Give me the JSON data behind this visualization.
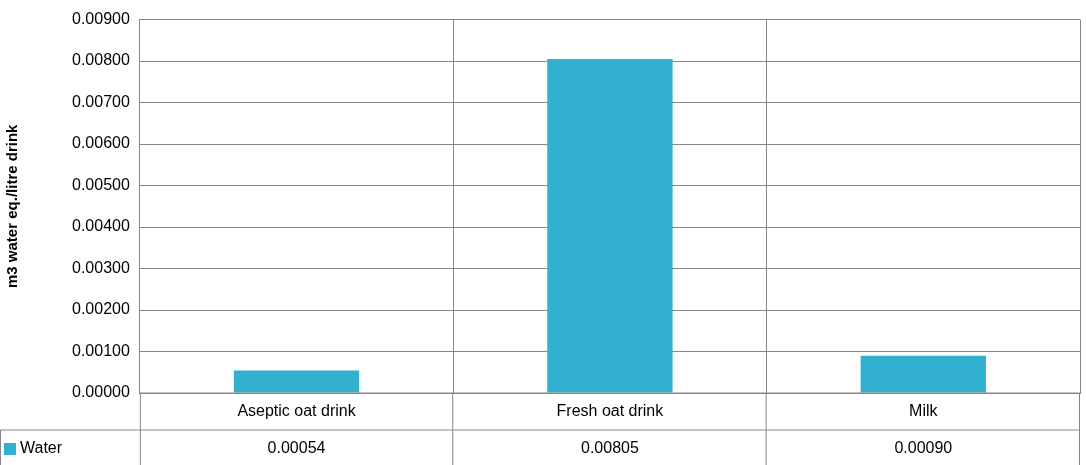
{
  "chart_data": {
    "type": "bar",
    "ylabel": "m3 water eq./litre drink",
    "categories": [
      "Aseptic oat drink",
      "Fresh oat drink",
      "Milk"
    ],
    "series": [
      {
        "name": "Water",
        "color": "#31b0d0",
        "values": [
          0.00054,
          0.00805,
          0.0009
        ],
        "value_labels": [
          "0.00054",
          "0.00805",
          "0.00090"
        ]
      }
    ],
    "ylim": [
      0,
      0.009
    ],
    "yticks": [
      {
        "value": 0,
        "label": "0.00000"
      },
      {
        "value": 0.001,
        "label": "0.00100"
      },
      {
        "value": 0.002,
        "label": "0.00200"
      },
      {
        "value": 0.003,
        "label": "0.00300"
      },
      {
        "value": 0.004,
        "label": "0.00400"
      },
      {
        "value": 0.005,
        "label": "0.00500"
      },
      {
        "value": 0.006,
        "label": "0.00600"
      },
      {
        "value": 0.007,
        "label": "0.00700"
      },
      {
        "value": 0.008,
        "label": "0.00800"
      },
      {
        "value": 0.009,
        "label": "0.00900"
      }
    ],
    "grid": true,
    "legend": "bottom"
  }
}
